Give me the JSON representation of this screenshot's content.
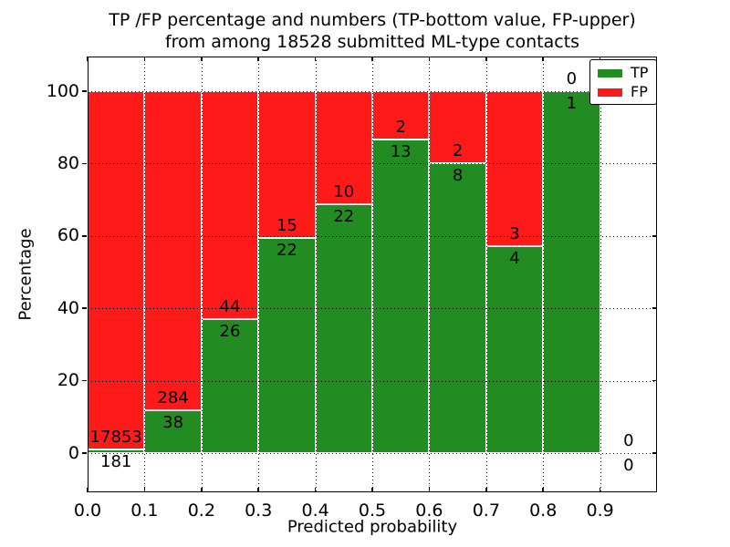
{
  "figure": {
    "title_line1": "TP /FP percentage and numbers (TP-bottom value, FP-upper)",
    "title_line2": "from among 18528 submitted ML-type contacts",
    "background_color": "#ffffff"
  },
  "chart_data": {
    "type": "bar",
    "subtype": "stacked-percentage-histogram",
    "title": "TP /FP percentage and numbers (TP-bottom value, FP-upper) from among 18528 submitted ML-type contacts",
    "xlabel": "Predicted probability",
    "ylabel": "Percentage",
    "x_tick_labels": [
      "0.0",
      "0.1",
      "0.2",
      "0.3",
      "0.4",
      "0.5",
      "0.6",
      "0.7",
      "0.8",
      "0.9"
    ],
    "y_ticks": [
      0,
      20,
      40,
      60,
      80,
      100
    ],
    "xlim": [
      0.0,
      1.0
    ],
    "ylim": [
      -11,
      110
    ],
    "bin_width": 0.1,
    "grid": "dotted black, drawn above bars",
    "legend_position": "upper right",
    "legend": {
      "items": [
        {
          "label": "TP",
          "color": "#228b22"
        },
        {
          "label": "FP",
          "color": "#ff1a1a"
        }
      ]
    },
    "total_contacts": 18528,
    "bins": [
      {
        "x0": 0.0,
        "x1": 0.1,
        "tp": 181,
        "fp": 17853,
        "tp_pct": 1.0
      },
      {
        "x0": 0.1,
        "x1": 0.2,
        "tp": 38,
        "fp": 284,
        "tp_pct": 11.8
      },
      {
        "x0": 0.2,
        "x1": 0.3,
        "tp": 26,
        "fp": 44,
        "tp_pct": 37.1
      },
      {
        "x0": 0.3,
        "x1": 0.4,
        "tp": 22,
        "fp": 15,
        "tp_pct": 59.5
      },
      {
        "x0": 0.4,
        "x1": 0.5,
        "tp": 22,
        "fp": 10,
        "tp_pct": 68.8
      },
      {
        "x0": 0.5,
        "x1": 0.6,
        "tp": 13,
        "fp": 2,
        "tp_pct": 86.7
      },
      {
        "x0": 0.6,
        "x1": 0.7,
        "tp": 8,
        "fp": 2,
        "tp_pct": 80.0
      },
      {
        "x0": 0.7,
        "x1": 0.8,
        "tp": 4,
        "fp": 3,
        "tp_pct": 57.1
      },
      {
        "x0": 0.8,
        "x1": 0.9,
        "tp": 1,
        "fp": 0,
        "tp_pct": 100.0
      },
      {
        "x0": 0.9,
        "x1": 1.0,
        "tp": 0,
        "fp": 0,
        "tp_pct": null
      }
    ],
    "colors": {
      "tp": "#228b22",
      "fp": "#ff1a1a",
      "bar_edge": "#ffffff",
      "grid": "#000000",
      "text": "#000000"
    }
  }
}
